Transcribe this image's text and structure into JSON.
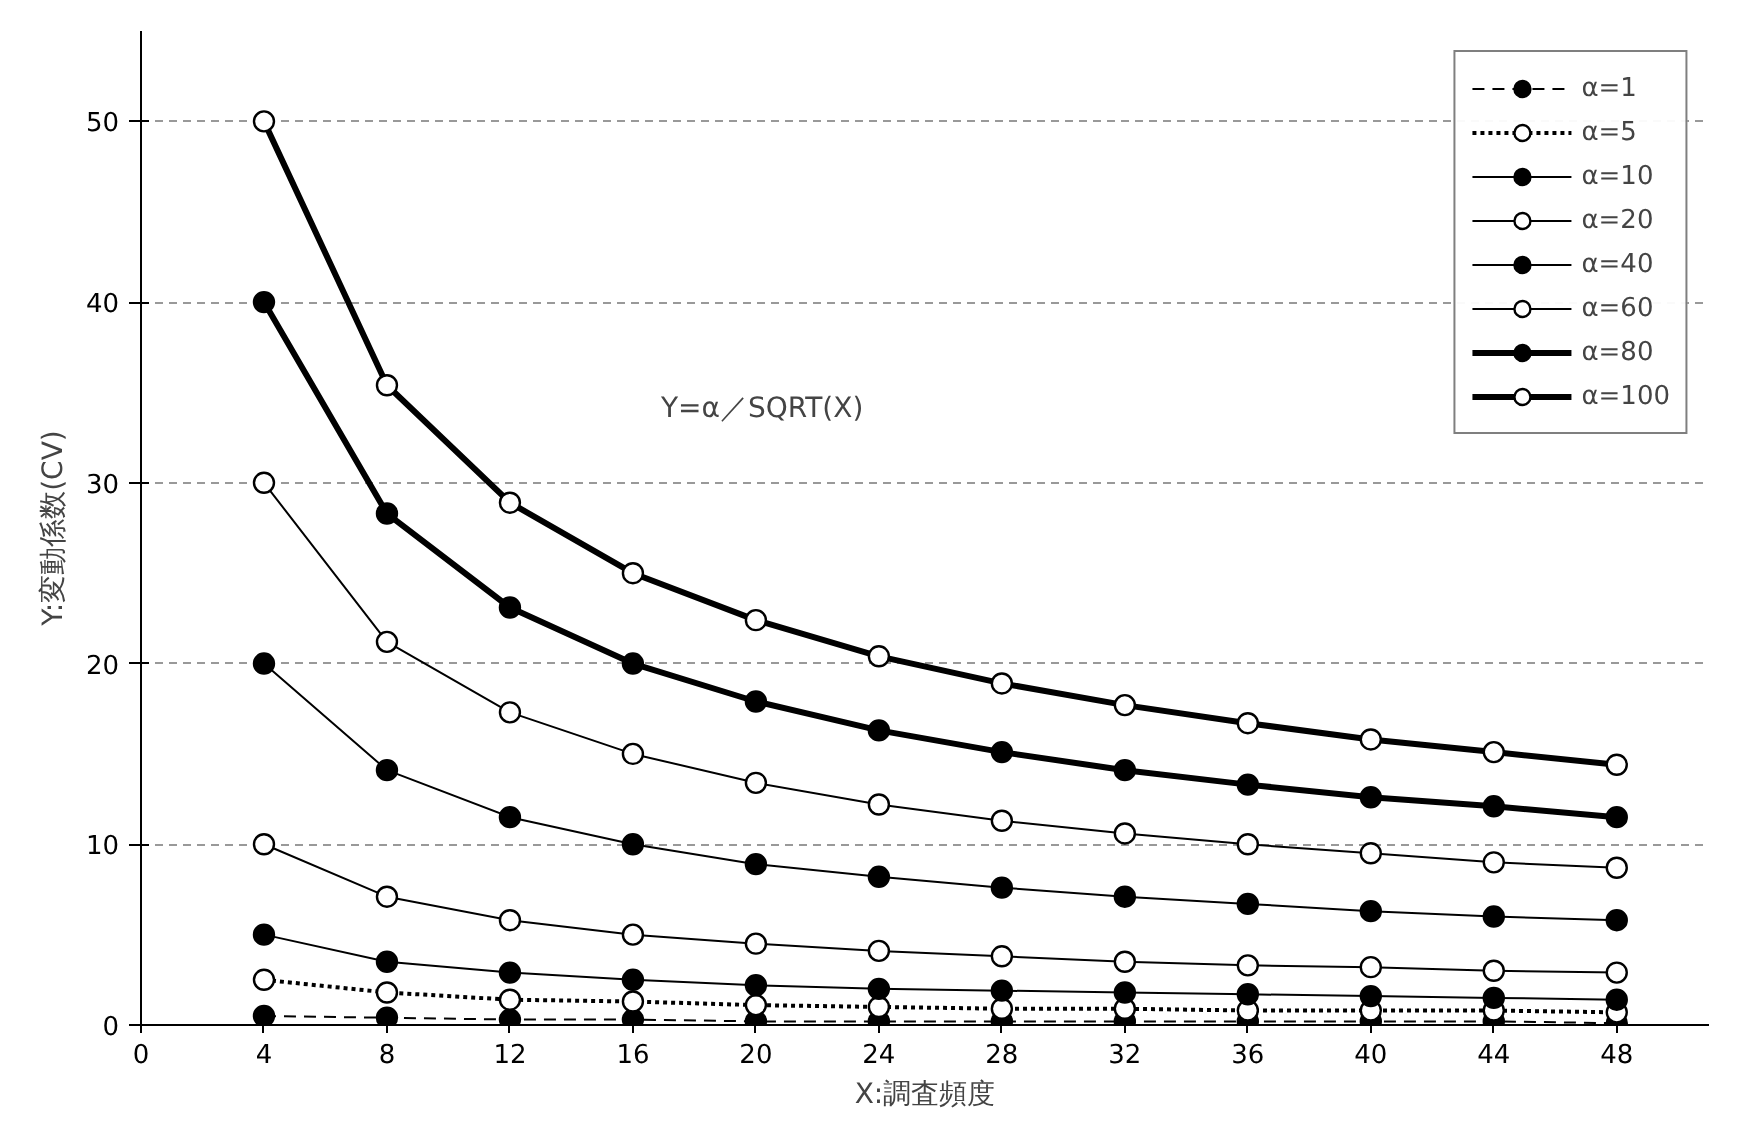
{
  "chart_data": {
    "type": "line",
    "xlabel": "X:調査頻度",
    "ylabel": "Y:変動係数(CV)",
    "x": [
      4,
      8,
      12,
      16,
      20,
      24,
      28,
      32,
      36,
      40,
      44,
      48
    ],
    "xlim": [
      0,
      51
    ],
    "xticks": [
      0,
      4,
      8,
      12,
      16,
      20,
      24,
      28,
      32,
      36,
      40,
      44,
      48
    ],
    "ylim": [
      0,
      55
    ],
    "yticks": [
      0,
      10,
      20,
      30,
      40,
      50
    ],
    "grid": "y",
    "legend": "top right",
    "marker": "circle",
    "annotations": [
      "Y=α／SQRT(X)"
    ],
    "series": [
      {
        "name": "α=1",
        "color": "#000000",
        "line_style": "dashed",
        "values": [
          0.5,
          0.4,
          0.3,
          0.3,
          0.2,
          0.2,
          0.2,
          0.2,
          0.2,
          0.2,
          0.2,
          0.1
        ]
      },
      {
        "name": "α=5",
        "color": "#000000",
        "line_style": "dotted",
        "values": [
          2.5,
          1.8,
          1.4,
          1.3,
          1.1,
          1.0,
          0.9,
          0.9,
          0.8,
          0.8,
          0.8,
          0.7
        ]
      },
      {
        "name": "α=10",
        "color": "#000000",
        "line_style": "solid",
        "values": [
          5,
          3.5,
          2.9,
          2.5,
          2.2,
          2.0,
          1.9,
          1.8,
          1.7,
          1.6,
          1.5,
          1.4
        ]
      },
      {
        "name": "α=20",
        "color": "#000000",
        "line_style": "solid",
        "values": [
          10,
          7.1,
          5.8,
          5,
          4.5,
          4.1,
          3.8,
          3.5,
          3.3,
          3.2,
          3.0,
          2.9
        ]
      },
      {
        "name": "α=40",
        "color": "#000000",
        "line_style": "solid",
        "values": [
          20,
          14.1,
          11.5,
          10,
          8.9,
          8.2,
          7.6,
          7.1,
          6.7,
          6.3,
          6.0,
          5.8
        ]
      },
      {
        "name": "α=60",
        "color": "#000000",
        "line_style": "solid",
        "values": [
          30,
          21.2,
          17.3,
          15,
          13.4,
          12.2,
          11.3,
          10.6,
          10,
          9.5,
          9.0,
          8.7
        ]
      },
      {
        "name": "α=80",
        "color": "#000000",
        "line_style": "solid",
        "values": [
          40,
          28.3,
          23.1,
          20,
          17.9,
          16.3,
          15.1,
          14.1,
          13.3,
          12.6,
          12.1,
          11.5
        ]
      },
      {
        "name": "α=100",
        "color": "#000000",
        "line_style": "solid",
        "values": [
          50,
          35.4,
          28.9,
          25,
          22.4,
          20.4,
          18.9,
          17.7,
          16.7,
          15.8,
          15.1,
          14.4
        ]
      }
    ]
  }
}
